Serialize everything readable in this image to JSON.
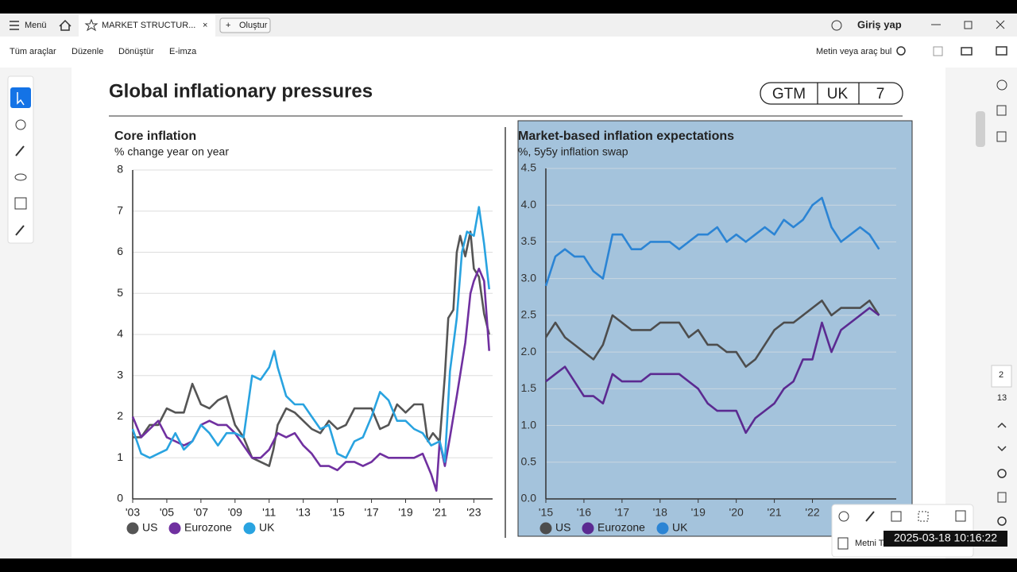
{
  "app": {
    "menu": "Menü",
    "tab": "MARKET STRUCTUR...",
    "create": "Oluştur",
    "login": "Giriş yap",
    "tools": [
      "Tüm araçlar",
      "Düzenle",
      "Dönüştür",
      "E-imza"
    ],
    "search": "Metin veya araç bul",
    "page": "2",
    "pages": "13",
    "popup": "Metni Tanı",
    "timestamp": "2025-03-18 10:16:22"
  },
  "document": {
    "title": "Global inflationary pressures",
    "badges": [
      "GTM",
      "UK",
      "7"
    ]
  },
  "chart_data": [
    {
      "type": "line",
      "title": "Core inflation",
      "subtitle": "% change year on year",
      "xlim": [
        2003,
        2024.1
      ],
      "ylim": [
        0,
        8
      ],
      "xticks": [
        {
          "value": 2003,
          "label": "'03"
        },
        {
          "value": 2005,
          "label": "'05"
        },
        {
          "value": 2007,
          "label": "'07"
        },
        {
          "value": 2009,
          "label": "'09"
        },
        {
          "value": 2011,
          "label": "'11"
        },
        {
          "value": 2013,
          "label": "'13"
        },
        {
          "value": 2015,
          "label": "'15"
        },
        {
          "value": 2017,
          "label": "'17"
        },
        {
          "value": 2019,
          "label": "'19"
        },
        {
          "value": 2021,
          "label": "'21"
        },
        {
          "value": 2023,
          "label": "'23"
        }
      ],
      "yticks": [
        0,
        1,
        2,
        3,
        4,
        5,
        6,
        7,
        8
      ],
      "grid": true,
      "series": [
        {
          "name": "US",
          "color": "#555555",
          "x": [
            2003,
            2003.5,
            2004,
            2004.5,
            2005,
            2005.5,
            2006,
            2006.5,
            2007,
            2007.5,
            2008,
            2008.5,
            2009,
            2009.5,
            2010,
            2010.5,
            2011,
            2011.25,
            2011.5,
            2012,
            2012.5,
            2013,
            2013.5,
            2014,
            2014.5,
            2015,
            2015.5,
            2016,
            2016.5,
            2017,
            2017.5,
            2018,
            2018.5,
            2019,
            2019.5,
            2020,
            2020.3,
            2020.6,
            2021,
            2021.3,
            2021.5,
            2021.8,
            2022,
            2022.2,
            2022.5,
            2022.8,
            2023,
            2023.3,
            2023.6,
            2023.9
          ],
          "values": [
            1.5,
            1.5,
            1.8,
            1.8,
            2.2,
            2.1,
            2.1,
            2.8,
            2.3,
            2.2,
            2.4,
            2.5,
            1.8,
            1.5,
            1.0,
            0.9,
            0.8,
            1.2,
            1.8,
            2.2,
            2.1,
            1.9,
            1.7,
            1.6,
            1.9,
            1.7,
            1.8,
            2.2,
            2.2,
            2.2,
            1.7,
            1.8,
            2.3,
            2.1,
            2.3,
            2.3,
            1.4,
            1.6,
            1.4,
            3.0,
            4.4,
            4.6,
            6.0,
            6.4,
            5.9,
            6.5,
            5.6,
            5.4,
            4.5,
            4.0
          ]
        },
        {
          "name": "Eurozone",
          "color": "#7030a0",
          "x": [
            2003,
            2003.5,
            2004,
            2004.5,
            2005,
            2005.5,
            2006,
            2006.5,
            2007,
            2007.5,
            2008,
            2008.5,
            2009,
            2009.5,
            2010,
            2010.5,
            2011,
            2011.5,
            2012,
            2012.5,
            2013,
            2013.5,
            2014,
            2014.5,
            2015,
            2015.5,
            2016,
            2016.5,
            2017,
            2017.5,
            2018,
            2018.5,
            2019,
            2019.5,
            2020,
            2020.5,
            2020.8,
            2021,
            2021.3,
            2021.6,
            2022,
            2022.5,
            2022.8,
            2023,
            2023.3,
            2023.6,
            2023.9
          ],
          "values": [
            2.0,
            1.5,
            1.7,
            1.9,
            1.5,
            1.4,
            1.3,
            1.4,
            1.8,
            1.9,
            1.8,
            1.8,
            1.6,
            1.3,
            1.0,
            1.0,
            1.2,
            1.6,
            1.5,
            1.6,
            1.3,
            1.1,
            0.8,
            0.8,
            0.7,
            0.9,
            0.9,
            0.8,
            0.9,
            1.1,
            1.0,
            1.0,
            1.0,
            1.0,
            1.1,
            0.6,
            0.2,
            1.4,
            0.8,
            1.5,
            2.5,
            3.8,
            5.0,
            5.3,
            5.6,
            5.3,
            3.6
          ]
        },
        {
          "name": "UK",
          "color": "#29a3e0",
          "x": [
            2003,
            2003.5,
            2004,
            2004.5,
            2005,
            2005.5,
            2006,
            2006.5,
            2007,
            2007.5,
            2008,
            2008.5,
            2009,
            2009.5,
            2010,
            2010.5,
            2011,
            2011.3,
            2011.5,
            2012,
            2012.5,
            2013,
            2013.5,
            2014,
            2014.5,
            2015,
            2015.5,
            2016,
            2016.5,
            2017,
            2017.5,
            2018,
            2018.5,
            2019,
            2019.5,
            2020,
            2020.5,
            2021,
            2021.3,
            2021.6,
            2022,
            2022.3,
            2022.6,
            2023,
            2023.3,
            2023.6,
            2023.9
          ],
          "values": [
            1.7,
            1.1,
            1.0,
            1.1,
            1.2,
            1.6,
            1.2,
            1.4,
            1.8,
            1.6,
            1.3,
            1.6,
            1.6,
            1.5,
            3.0,
            2.9,
            3.2,
            3.6,
            3.2,
            2.5,
            2.3,
            2.3,
            2.0,
            1.7,
            1.8,
            1.1,
            1.0,
            1.4,
            1.5,
            2.0,
            2.6,
            2.4,
            1.9,
            1.9,
            1.7,
            1.6,
            1.3,
            1.4,
            0.9,
            3.1,
            4.4,
            6.0,
            6.5,
            6.4,
            7.1,
            6.2,
            5.1
          ]
        }
      ]
    },
    {
      "type": "line",
      "title": "Market-based inflation expectations",
      "subtitle": "%, 5y5y inflation swap",
      "xlim": [
        2015,
        2024.2
      ],
      "ylim": [
        0,
        4.5
      ],
      "xticks": [
        {
          "value": 2015,
          "label": "'15"
        },
        {
          "value": 2016,
          "label": "'16"
        },
        {
          "value": 2017,
          "label": "'17"
        },
        {
          "value": 2018,
          "label": "'18"
        },
        {
          "value": 2019,
          "label": "'19"
        },
        {
          "value": 2020,
          "label": "'20"
        },
        {
          "value": 2021,
          "label": "'21"
        },
        {
          "value": 2022,
          "label": "'22"
        }
      ],
      "yticks": [
        {
          "value": 0,
          "label": "0.0"
        },
        0.5,
        {
          "value": 1,
          "label": "1.0"
        },
        1.5,
        {
          "value": 2,
          "label": "2.0"
        },
        2.5,
        {
          "value": 3,
          "label": "3.0"
        },
        3.5,
        {
          "value": 4,
          "label": "4.0"
        },
        4.5
      ],
      "grid": true,
      "series": [
        {
          "name": "US",
          "color": "#4d4d4d",
          "x": [
            2015,
            2015.25,
            2015.5,
            2015.75,
            2016,
            2016.25,
            2016.5,
            2016.75,
            2017,
            2017.25,
            2017.5,
            2017.75,
            2018,
            2018.25,
            2018.5,
            2018.75,
            2019,
            2019.25,
            2019.5,
            2019.75,
            2020,
            2020.25,
            2020.5,
            2020.75,
            2021,
            2021.25,
            2021.5,
            2021.75,
            2022,
            2022.25,
            2022.5,
            2022.75,
            2023,
            2023.25,
            2023.5,
            2023.75
          ],
          "values": [
            2.2,
            2.4,
            2.2,
            2.1,
            2.0,
            1.9,
            2.1,
            2.5,
            2.4,
            2.3,
            2.3,
            2.3,
            2.4,
            2.4,
            2.4,
            2.2,
            2.3,
            2.1,
            2.1,
            2.0,
            2.0,
            1.8,
            1.9,
            2.1,
            2.3,
            2.4,
            2.4,
            2.5,
            2.6,
            2.7,
            2.5,
            2.6,
            2.6,
            2.6,
            2.7,
            2.5
          ]
        },
        {
          "name": "Eurozone",
          "color": "#5b2a91",
          "x": [
            2015,
            2015.25,
            2015.5,
            2015.75,
            2016,
            2016.25,
            2016.5,
            2016.75,
            2017,
            2017.25,
            2017.5,
            2017.75,
            2018,
            2018.25,
            2018.5,
            2018.75,
            2019,
            2019.25,
            2019.5,
            2019.75,
            2020,
            2020.25,
            2020.5,
            2020.75,
            2021,
            2021.25,
            2021.5,
            2021.75,
            2022,
            2022.25,
            2022.5,
            2022.75,
            2023,
            2023.25,
            2023.5,
            2023.75
          ],
          "values": [
            1.6,
            1.7,
            1.8,
            1.6,
            1.4,
            1.4,
            1.3,
            1.7,
            1.6,
            1.6,
            1.6,
            1.7,
            1.7,
            1.7,
            1.7,
            1.6,
            1.5,
            1.3,
            1.2,
            1.2,
            1.2,
            0.9,
            1.1,
            1.2,
            1.3,
            1.5,
            1.6,
            1.9,
            1.9,
            2.4,
            2.0,
            2.3,
            2.4,
            2.5,
            2.6,
            2.5
          ]
        },
        {
          "name": "UK",
          "color": "#2b84d4",
          "x": [
            2015,
            2015.25,
            2015.5,
            2015.75,
            2016,
            2016.25,
            2016.5,
            2016.75,
            2017,
            2017.25,
            2017.5,
            2017.75,
            2018,
            2018.25,
            2018.5,
            2018.75,
            2019,
            2019.25,
            2019.5,
            2019.75,
            2020,
            2020.25,
            2020.5,
            2020.75,
            2021,
            2021.25,
            2021.5,
            2021.75,
            2022,
            2022.25,
            2022.5,
            2022.75,
            2023,
            2023.25,
            2023.5,
            2023.75
          ],
          "values": [
            2.9,
            3.3,
            3.4,
            3.3,
            3.3,
            3.1,
            3.0,
            3.6,
            3.6,
            3.4,
            3.4,
            3.5,
            3.5,
            3.5,
            3.4,
            3.5,
            3.6,
            3.6,
            3.7,
            3.5,
            3.6,
            3.5,
            3.6,
            3.7,
            3.6,
            3.8,
            3.7,
            3.8,
            4.0,
            4.1,
            3.7,
            3.5,
            3.6,
            3.7,
            3.6,
            3.4
          ]
        }
      ]
    }
  ]
}
